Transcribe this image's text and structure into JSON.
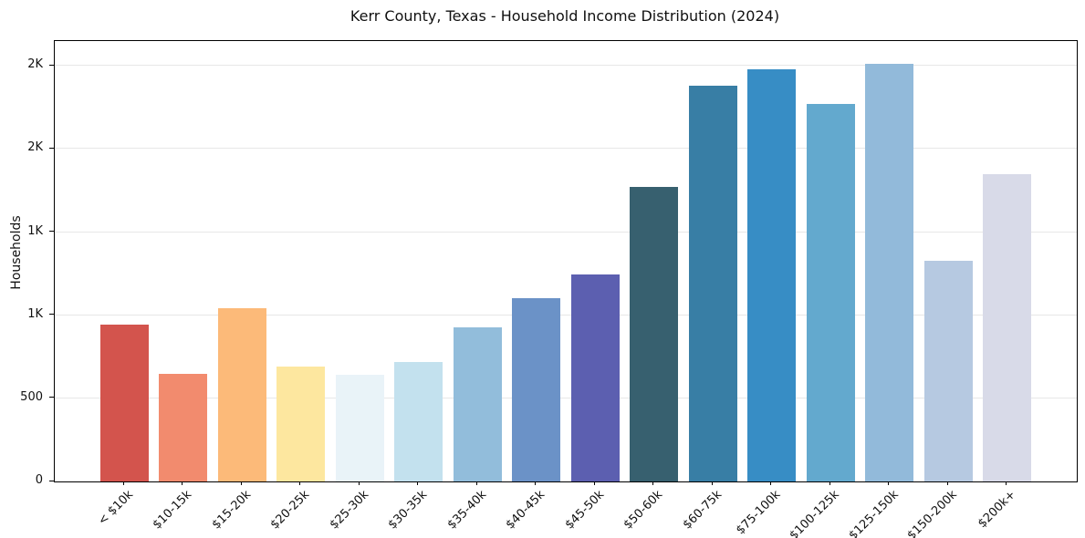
{
  "chart_data": {
    "type": "bar",
    "title": "Kerr County, Texas - Household Income Distribution (2024)",
    "xlabel": "",
    "ylabel": "Households",
    "categories": [
      "< $10k",
      "$10-15k",
      "$15-20k",
      "$20-25k",
      "$25-30k",
      "$30-35k",
      "$35-40k",
      "$40-45k",
      "$45-50k",
      "$50-60k",
      "$60-75k",
      "$75-100k",
      "$100-125k",
      "$125-150k",
      "$150-200k",
      "$200k+"
    ],
    "values": [
      945,
      650,
      1040,
      690,
      640,
      720,
      930,
      1105,
      1245,
      1770,
      2380,
      2480,
      2270,
      2515,
      1330,
      1850
    ],
    "bar_colors": [
      "#d3544d",
      "#f28b6e",
      "#fcba79",
      "#fde79f",
      "#e9f3f8",
      "#c3e1ee",
      "#92bddb",
      "#6b92c7",
      "#5c5fb0",
      "#37606f",
      "#387ea5",
      "#378dc5",
      "#63a9ce",
      "#92bada",
      "#b6c9e1",
      "#d8dae8"
    ],
    "ylim": [
      0,
      2650
    ],
    "yticks": [
      {
        "value": 0,
        "label": "0"
      },
      {
        "value": 500,
        "label": "500"
      },
      {
        "value": 1000,
        "label": "1K"
      },
      {
        "value": 1500,
        "label": "1K"
      },
      {
        "value": 2000,
        "label": "2K"
      },
      {
        "value": 2500,
        "label": "2K"
      }
    ],
    "grid": "horizontal-only",
    "legend": "none",
    "colors": {
      "background": "#ffffff",
      "gridline": "#e7e7e7",
      "axis": "#000000",
      "text": "#111111"
    }
  }
}
